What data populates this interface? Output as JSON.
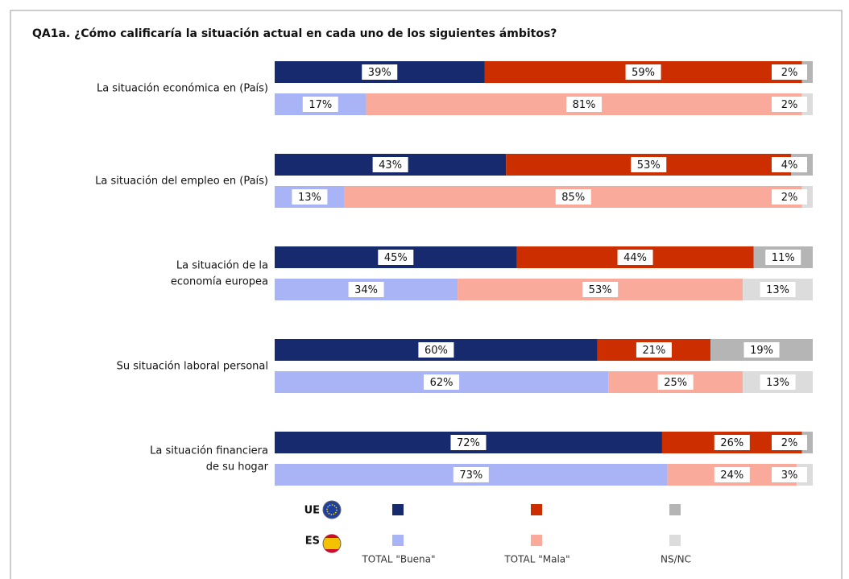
{
  "chart_data": {
    "type": "stacked-bar-horizontal",
    "title": "QA1a. ¿Cómo calificaría la situación actual en cada uno de los siguientes ámbitos?",
    "categories": [
      "La situación económica en (País)",
      "La situación del empleo en (País)",
      "La situación de la\neconomía europea",
      "Su situación laboral personal",
      "La situación financiera\nde su hogar"
    ],
    "xlim": [
      0,
      100
    ],
    "series_names": [
      "TOTAL \"Buena\"",
      "TOTAL \"Mala\"",
      "NS/NC"
    ],
    "groups": [
      {
        "name": "UE",
        "series": [
          {
            "color": "#172a6e",
            "values": [
              39,
              43,
              45,
              60,
              72
            ],
            "value_labels": [
              "39%",
              "43%",
              "45%",
              "60%",
              "72%"
            ]
          },
          {
            "color": "#cc2e00",
            "values": [
              59,
              53,
              44,
              21,
              26
            ],
            "value_labels": [
              "59%",
              "53%",
              "44%",
              "21%",
              "26%"
            ]
          },
          {
            "color": "#b5b5b5",
            "values": [
              2,
              4,
              11,
              19,
              2
            ],
            "value_labels": [
              "2%",
              "4%",
              "11%",
              "19%",
              "2%"
            ]
          }
        ]
      },
      {
        "name": "ES",
        "series": [
          {
            "color": "#a8b4f6",
            "values": [
              17,
              13,
              34,
              62,
              73
            ],
            "value_labels": [
              "17%",
              "13%",
              "34%",
              "62%",
              "73%"
            ]
          },
          {
            "color": "#f9aa9a",
            "values": [
              81,
              85,
              53,
              25,
              24
            ],
            "value_labels": [
              "81%",
              "85%",
              "53%",
              "25%",
              "24%"
            ]
          },
          {
            "color": "#dcdcdc",
            "values": [
              2,
              2,
              13,
              13,
              3
            ],
            "value_labels": [
              "2%",
              "2%",
              "13%",
              "13%",
              "3%"
            ]
          }
        ]
      }
    ]
  }
}
